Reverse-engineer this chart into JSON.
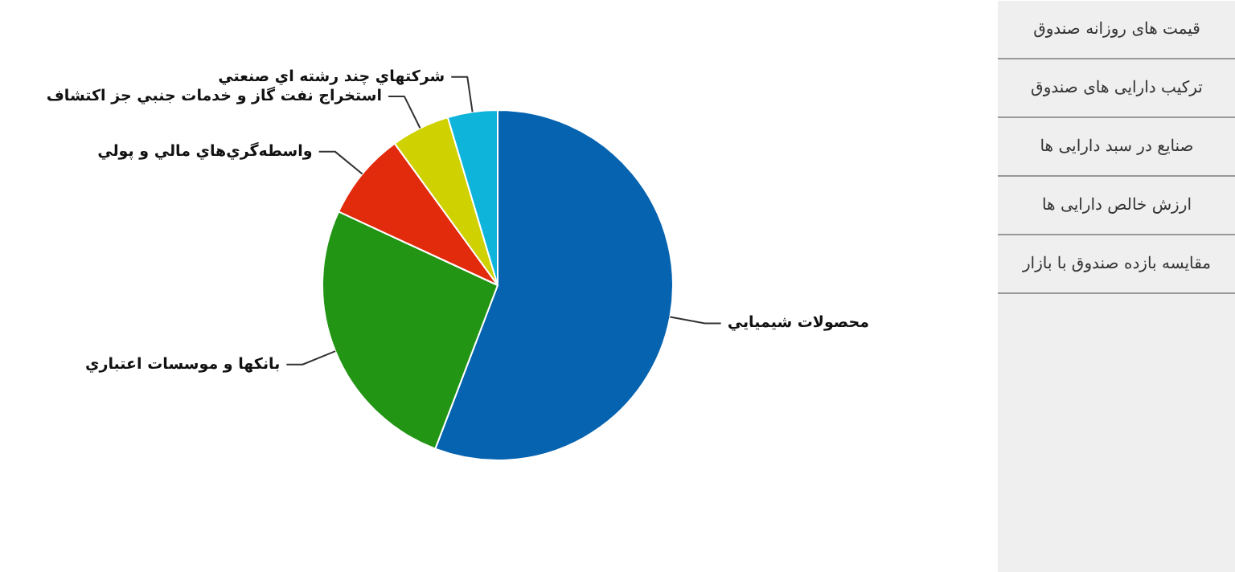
{
  "chart_data": {
    "type": "pie",
    "categories": [
      "محصولات شيميايي",
      "بانکها و موسسات اعتباري",
      "واسطه‌گري‌هاي مالي و پولي",
      "استخراج نفت گاز و خدمات جنبي جز اکتشاف",
      "شرکتهاي چند رشته اي صنعتي"
    ],
    "values": [
      55.8,
      26.1,
      8.1,
      5.4,
      4.6
    ],
    "colors": [
      "#0663b0",
      "#239515",
      "#e22a0d",
      "#cfd100",
      "#0fb4db"
    ],
    "annotations": [
      "قیمت های روزانه صندوق",
      "ترکیب دارایی های صندوق",
      "صنایع در سبد دارایی ها",
      "ارزش خالص دارایی ها",
      "مقایسه بازده صندوق با بازار"
    ]
  }
}
